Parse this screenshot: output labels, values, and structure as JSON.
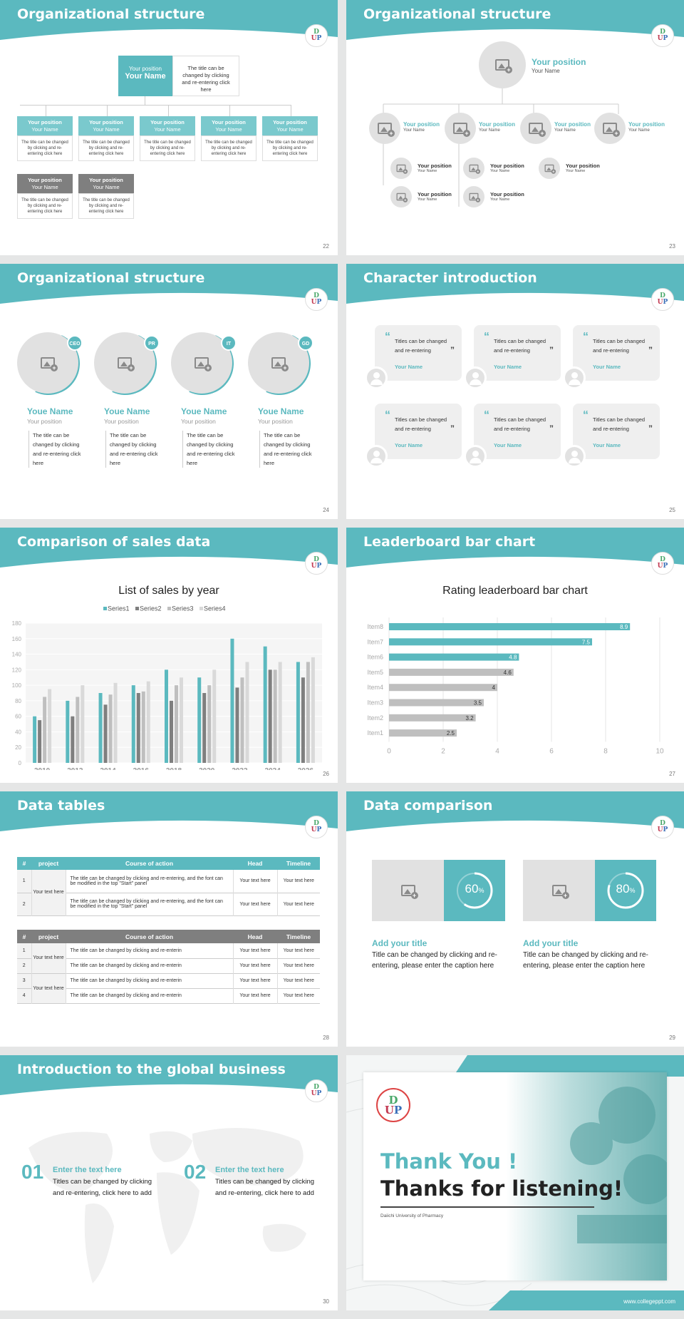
{
  "slides": [
    {
      "title": "Organizational structure",
      "page": "22",
      "top": {
        "position": "Your position",
        "name": "Your Name",
        "desc": "The title can be changed by clicking and re-entering click here"
      },
      "boxes": [
        {
          "position": "Your position",
          "name": "Your Name",
          "desc": "The title can be changed by clicking and re-entering click here"
        },
        {
          "position": "Your position",
          "name": "Your Name",
          "desc": "The title can be changed by clicking and re-entering click here"
        },
        {
          "position": "Your position",
          "name": "Your Name",
          "desc": "The title can be changed by clicking and re-entering click here"
        },
        {
          "position": "Your position",
          "name": "Your Name",
          "desc": "The title can be changed by clicking and re-entering click here"
        },
        {
          "position": "Your position",
          "name": "Your Name",
          "desc": "The title can be changed by clicking and re-entering click here"
        }
      ],
      "gray": [
        {
          "position": "Your position",
          "name": "Your Name",
          "desc": "The title can be changed by clicking and re-entering click here"
        },
        {
          "position": "Your position",
          "name": "Your Name",
          "desc": "The title can be changed by clicking and re-entering click here"
        }
      ]
    },
    {
      "title": "Organizational structure",
      "page": "23",
      "top": {
        "position": "Your position",
        "name": "Your Name"
      },
      "mid": [
        {
          "position": "Your position",
          "name": "Your Name"
        },
        {
          "position": "Your position",
          "name": "Your Name"
        },
        {
          "position": "Your position",
          "name": "Your Name"
        },
        {
          "position": "Your position",
          "name": "Your Name"
        }
      ],
      "sub": [
        {
          "position": "Your position",
          "name": "Your Name"
        },
        {
          "position": "Your position",
          "name": "Your Name"
        },
        {
          "position": "Your position",
          "name": "Your Name"
        },
        {
          "position": "Your position",
          "name": "Your Name"
        },
        {
          "position": "Your position",
          "name": "Your Name"
        }
      ]
    },
    {
      "title": "Organizational structure",
      "page": "24",
      "people": [
        {
          "badge": "CEO",
          "name": "Youe Name",
          "position": "Your position",
          "desc": "The title can be changed by clicking and re-entering click here"
        },
        {
          "badge": "PR",
          "name": "Youe Name",
          "position": "Your position",
          "desc": "The title can be changed by clicking and re-entering click here"
        },
        {
          "badge": "IT",
          "name": "Youe Name",
          "position": "Your position",
          "desc": "The title can be changed by clicking and re-entering click here"
        },
        {
          "badge": "GD",
          "name": "Youe Name",
          "position": "Your position",
          "desc": "The title can be changed by clicking and re-entering click here"
        }
      ]
    },
    {
      "title": "Character introduction",
      "page": "25",
      "quote_text": "Titles can be changed and re-entering",
      "quote_name": "Your Name",
      "open_quote": "“",
      "close_quote": "”"
    },
    {
      "title": "Comparison of sales data",
      "page": "26"
    },
    {
      "title": "Leaderboard bar chart",
      "page": "27"
    },
    {
      "title": "Data tables",
      "page": "28",
      "table1": {
        "headers": [
          "#",
          "project",
          "Course of action",
          "Head",
          "Timeline"
        ],
        "merged": "Your text here",
        "rows": [
          {
            "n": "1",
            "action": "The title can be changed by clicking and re-entering, and the font can be modified in the top \"Start\" panel",
            "head": "Your text here",
            "time": "Your text here"
          },
          {
            "n": "2",
            "action": "The title can be changed by clicking and re-entering, and the font can be modified in the top \"Start\" panel",
            "head": "Your text here",
            "time": "Your text here"
          }
        ]
      },
      "table2": {
        "headers": [
          "#",
          "project",
          "Course of action",
          "Head",
          "Timeline"
        ],
        "merged": [
          "Your text here",
          "Your text here"
        ],
        "rows": [
          {
            "n": "1",
            "action": "The title can be changed by clicking and re-enterin",
            "head": "Your text here",
            "time": "Your text here"
          },
          {
            "n": "2",
            "action": "The title can be changed by clicking and re-enterin",
            "head": "Your text here",
            "time": "Your text here"
          },
          {
            "n": "3",
            "action": "The title can be changed by clicking and re-enterin",
            "head": "Your text here",
            "time": "Your text here"
          },
          {
            "n": "4",
            "action": "The title can be changed by clicking and re-enterin",
            "head": "Your text here",
            "time": "Your text here"
          }
        ]
      }
    },
    {
      "title": "Data comparison",
      "page": "29",
      "cards": [
        {
          "percent": 60,
          "label": "60",
          "unit": "%",
          "heading": "Add your title",
          "desc": "Title can be changed by clicking and re-entering, please enter the caption here"
        },
        {
          "percent": 80,
          "label": "80",
          "unit": "%",
          "heading": "Add your title",
          "desc": "Title can be changed by clicking and re-entering, please enter the caption here"
        }
      ]
    },
    {
      "title": "Introduction to the global business",
      "page": "30",
      "items": [
        {
          "num": "01",
          "heading": "Enter the text here",
          "desc": "Titles can be changed by clicking and re-entering, click here to add"
        },
        {
          "num": "02",
          "heading": "Enter the text here",
          "desc": "Titles can be changed by clicking and re-entering, click here to add"
        }
      ]
    },
    {
      "thank": "Thank You !",
      "thanks": "Thanks for listening!",
      "uni": "Daiichi University of Pharmacy",
      "url": "www.collegeppt.com",
      "logo_ring": "DAIICHI UNIVERSITY"
    }
  ],
  "colors": {
    "teal": "#5bb9bf",
    "gray": "#7f7f7f",
    "light": "#bfbfbf"
  },
  "chart_data": [
    {
      "type": "bar",
      "title": "List of sales by year",
      "categories": [
        "2010",
        "2012",
        "2014",
        "2016",
        "2018",
        "2020",
        "2022",
        "2024",
        "2026"
      ],
      "ylim": [
        0,
        180
      ],
      "yticks": [
        0,
        20,
        40,
        60,
        80,
        100,
        120,
        140,
        160,
        180
      ],
      "legend": "top",
      "series": [
        {
          "name": "Series1",
          "color": "#5bb9bf",
          "values": [
            60,
            80,
            90,
            100,
            120,
            110,
            160,
            150,
            130
          ]
        },
        {
          "name": "Series2",
          "color": "#7f7f7f",
          "values": [
            55,
            60,
            75,
            90,
            80,
            90,
            97,
            120,
            110
          ]
        },
        {
          "name": "Series3",
          "color": "#bfbfbf",
          "values": [
            85,
            85,
            88,
            92,
            100,
            100,
            110,
            120,
            130
          ]
        },
        {
          "name": "Series4",
          "color": "#d9d9d9",
          "values": [
            95,
            100,
            103,
            105,
            110,
            120,
            130,
            130,
            136
          ]
        }
      ]
    },
    {
      "type": "bar",
      "orientation": "horizontal",
      "title": "Rating leaderboard bar chart",
      "categories": [
        "Item8",
        "Item7",
        "Item6",
        "Item5",
        "Item4",
        "Item3",
        "Item2",
        "Item1"
      ],
      "values": [
        8.9,
        7.5,
        4.8,
        4.6,
        4,
        3.5,
        3.2,
        2.5
      ],
      "value_labels": [
        "8.9",
        "7.5",
        "4.8",
        "4.6",
        "4",
        "3.5",
        "3.2",
        "2.5"
      ],
      "highlight_colors": [
        "#5bb9bf",
        "#5bb9bf",
        "#5bb9bf",
        "#bfbfbf",
        "#bfbfbf",
        "#bfbfbf",
        "#bfbfbf",
        "#bfbfbf"
      ],
      "xlim": [
        0,
        10
      ],
      "xticks": [
        "0",
        "2",
        "4",
        "6",
        "8",
        "10"
      ]
    }
  ]
}
